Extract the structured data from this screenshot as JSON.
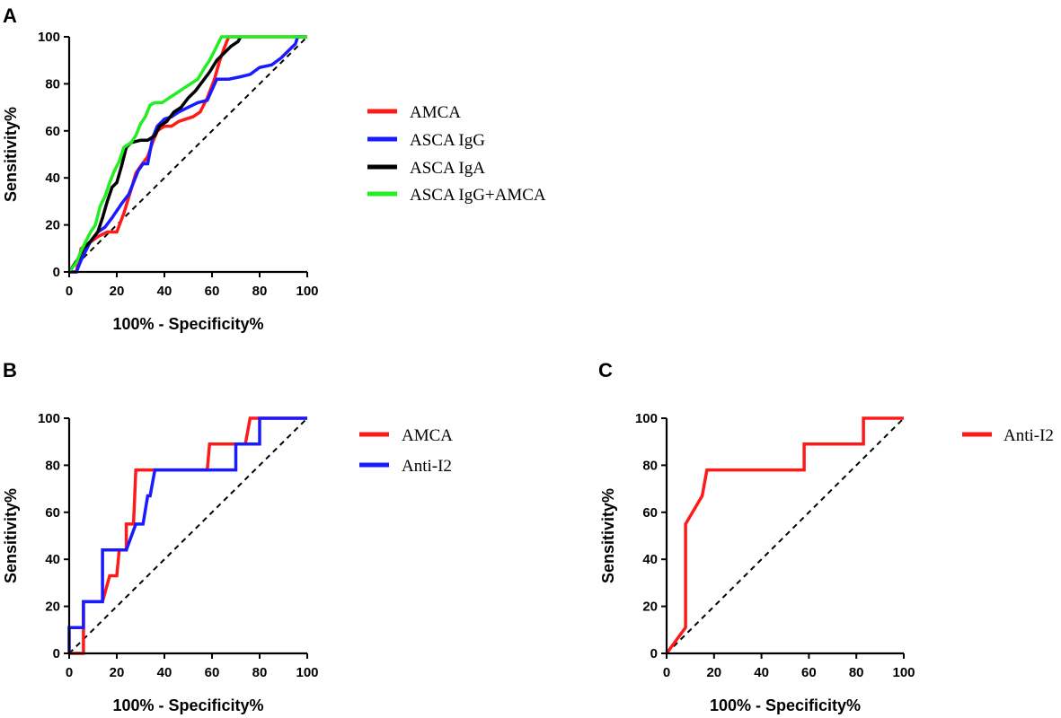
{
  "chart_data": [
    {
      "panel_label": "A",
      "type": "line",
      "xlabel": "100% - Specificity%",
      "ylabel": "Sensitivity%",
      "xlim": [
        0,
        100
      ],
      "ylim": [
        0,
        100
      ],
      "xticks": [
        "0",
        "20",
        "40",
        "60",
        "80",
        "100"
      ],
      "yticks": [
        "0",
        "20",
        "40",
        "60",
        "80",
        "100"
      ],
      "reference_line": "diagonal",
      "legend_position": "right",
      "series": [
        {
          "name": "AMCA",
          "color": "#ff1a1a",
          "points": [
            [
              0,
              0
            ],
            [
              3,
              0
            ],
            [
              4,
              5
            ],
            [
              5,
              10
            ],
            [
              8,
              12
            ],
            [
              12,
              15
            ],
            [
              16,
              17
            ],
            [
              20,
              17
            ],
            [
              23,
              25
            ],
            [
              26,
              35
            ],
            [
              28,
              42
            ],
            [
              30,
              45
            ],
            [
              33,
              49
            ],
            [
              35,
              55
            ],
            [
              37,
              60
            ],
            [
              40,
              62
            ],
            [
              43,
              62
            ],
            [
              46,
              64
            ],
            [
              49,
              65
            ],
            [
              52,
              66
            ],
            [
              55,
              68
            ],
            [
              58,
              74
            ],
            [
              61,
              82
            ],
            [
              63,
              89
            ],
            [
              65,
              95
            ],
            [
              67,
              100
            ],
            [
              100,
              100
            ]
          ]
        },
        {
          "name": "ASCA IgG",
          "color": "#1a1aff",
          "points": [
            [
              0,
              0
            ],
            [
              3,
              0
            ],
            [
              5,
              5
            ],
            [
              7,
              9
            ],
            [
              9,
              13
            ],
            [
              12,
              17
            ],
            [
              15,
              19
            ],
            [
              18,
              23
            ],
            [
              20,
              26
            ],
            [
              22,
              29
            ],
            [
              25,
              33
            ],
            [
              27,
              38
            ],
            [
              29,
              43
            ],
            [
              31,
              46
            ],
            [
              33,
              46
            ],
            [
              35,
              57
            ],
            [
              37,
              62
            ],
            [
              40,
              65
            ],
            [
              43,
              66
            ],
            [
              46,
              68
            ],
            [
              50,
              70
            ],
            [
              54,
              72
            ],
            [
              58,
              73
            ],
            [
              62,
              82
            ],
            [
              67,
              82
            ],
            [
              72,
              83
            ],
            [
              76,
              84
            ],
            [
              80,
              87
            ],
            [
              85,
              88
            ],
            [
              89,
              91
            ],
            [
              93,
              95
            ],
            [
              95,
              97
            ],
            [
              96,
              100
            ],
            [
              100,
              100
            ]
          ]
        },
        {
          "name": "ASCA IgA",
          "color": "#000000",
          "points": [
            [
              0,
              0
            ],
            [
              2,
              3
            ],
            [
              4,
              6
            ],
            [
              6,
              10
            ],
            [
              9,
              13
            ],
            [
              12,
              17
            ],
            [
              14,
              23
            ],
            [
              16,
              30
            ],
            [
              18,
              36
            ],
            [
              20,
              38
            ],
            [
              22,
              45
            ],
            [
              24,
              53
            ],
            [
              26,
              55
            ],
            [
              30,
              56
            ],
            [
              33,
              56
            ],
            [
              36,
              58
            ],
            [
              38,
              62
            ],
            [
              41,
              64
            ],
            [
              44,
              68
            ],
            [
              47,
              70
            ],
            [
              50,
              74
            ],
            [
              53,
              77
            ],
            [
              56,
              81
            ],
            [
              59,
              85
            ],
            [
              62,
              90
            ],
            [
              65,
              93
            ],
            [
              68,
              96
            ],
            [
              71,
              98
            ],
            [
              72,
              100
            ]
          ]
        },
        {
          "name": "ASCA IgG+AMCA",
          "color": "#22ee22",
          "points": [
            [
              0,
              0
            ],
            [
              3,
              4
            ],
            [
              5,
              9
            ],
            [
              7,
              13
            ],
            [
              9,
              17
            ],
            [
              11,
              20
            ],
            [
              13,
              28
            ],
            [
              15,
              32
            ],
            [
              17,
              38
            ],
            [
              19,
              43
            ],
            [
              21,
              47
            ],
            [
              23,
              53
            ],
            [
              26,
              55
            ],
            [
              28,
              58
            ],
            [
              30,
              63
            ],
            [
              32,
              66
            ],
            [
              34,
              71
            ],
            [
              36,
              72
            ],
            [
              39,
              72
            ],
            [
              42,
              74
            ],
            [
              45,
              76
            ],
            [
              48,
              78
            ],
            [
              51,
              80
            ],
            [
              54,
              82
            ],
            [
              57,
              87
            ],
            [
              59,
              90
            ],
            [
              61,
              94
            ],
            [
              63,
              98
            ],
            [
              64,
              100
            ],
            [
              100,
              100
            ]
          ]
        }
      ]
    },
    {
      "panel_label": "B",
      "type": "line",
      "xlabel": "100% - Specificity%",
      "ylabel": "Sensitivity%",
      "xlim": [
        0,
        100
      ],
      "ylim": [
        0,
        100
      ],
      "xticks": [
        "0",
        "20",
        "40",
        "60",
        "80",
        "100"
      ],
      "yticks": [
        "0",
        "20",
        "40",
        "60",
        "80",
        "100"
      ],
      "reference_line": "diagonal",
      "legend_position": "right",
      "series": [
        {
          "name": "AMCA",
          "color": "#ff1a1a",
          "points": [
            [
              0,
              0
            ],
            [
              6,
              0
            ],
            [
              6,
              22
            ],
            [
              14,
              22
            ],
            [
              17,
              33
            ],
            [
              20,
              33
            ],
            [
              21,
              44
            ],
            [
              24,
              44
            ],
            [
              24,
              55
            ],
            [
              27,
              55
            ],
            [
              28,
              78
            ],
            [
              58,
              78
            ],
            [
              59,
              89
            ],
            [
              74,
              89
            ],
            [
              76,
              100
            ],
            [
              100,
              100
            ]
          ]
        },
        {
          "name": "Anti-I2",
          "color": "#1a1aff",
          "points": [
            [
              0,
              0
            ],
            [
              0,
              11
            ],
            [
              6,
              11
            ],
            [
              6,
              22
            ],
            [
              14,
              22
            ],
            [
              14,
              44
            ],
            [
              24,
              44
            ],
            [
              28,
              55
            ],
            [
              31,
              55
            ],
            [
              33,
              67
            ],
            [
              34,
              67
            ],
            [
              36,
              78
            ],
            [
              70,
              78
            ],
            [
              70,
              89
            ],
            [
              80,
              89
            ],
            [
              80,
              100
            ],
            [
              100,
              100
            ]
          ]
        }
      ]
    },
    {
      "panel_label": "C",
      "type": "line",
      "xlabel": "100% - Specificity%",
      "ylabel": "Sensitivity%",
      "xlim": [
        0,
        100
      ],
      "ylim": [
        0,
        100
      ],
      "xticks": [
        "0",
        "20",
        "40",
        "60",
        "80",
        "100"
      ],
      "yticks": [
        "0",
        "20",
        "40",
        "60",
        "80",
        "100"
      ],
      "reference_line": "diagonal",
      "legend_position": "right",
      "series": [
        {
          "name": "Anti-I2",
          "color": "#ff1a1a",
          "points": [
            [
              0,
              0
            ],
            [
              8,
              11
            ],
            [
              8,
              55
            ],
            [
              15,
              67
            ],
            [
              17,
              78
            ],
            [
              58,
              78
            ],
            [
              58,
              89
            ],
            [
              83,
              89
            ],
            [
              83,
              100
            ],
            [
              100,
              100
            ]
          ]
        }
      ]
    }
  ]
}
